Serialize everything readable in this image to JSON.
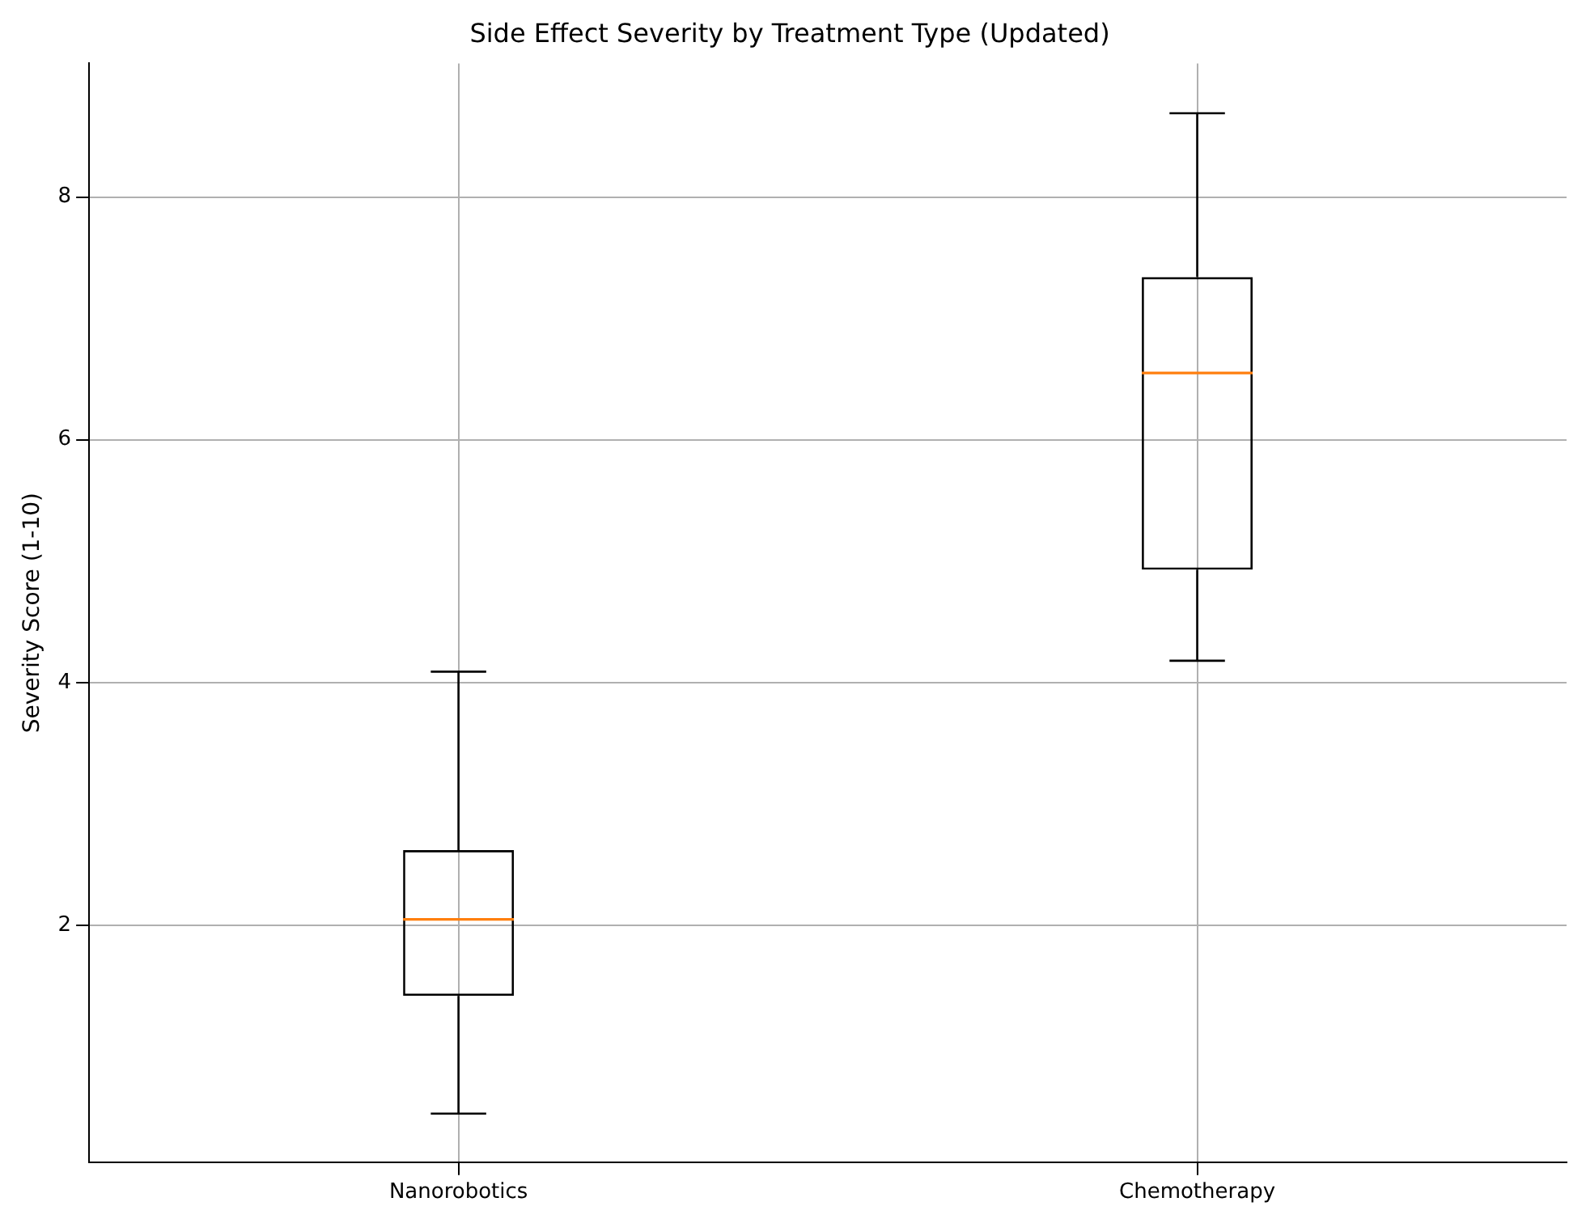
{
  "chart_data": {
    "type": "box",
    "title": "Side Effect Severity by Treatment Type (Updated)",
    "ylabel": "Severity Score (1-10)",
    "categories": [
      "Nanorobotics",
      "Chemotherapy"
    ],
    "boxes": [
      {
        "low": 0.45,
        "q1": 1.42,
        "median": 2.05,
        "q3": 2.62,
        "high": 4.09
      },
      {
        "low": 4.18,
        "q1": 4.93,
        "median": 6.55,
        "q3": 7.34,
        "high": 8.69
      }
    ],
    "ylim": [
      0.05,
      9.1
    ],
    "yticks": [
      2,
      4,
      6,
      8
    ],
    "grid": true
  }
}
